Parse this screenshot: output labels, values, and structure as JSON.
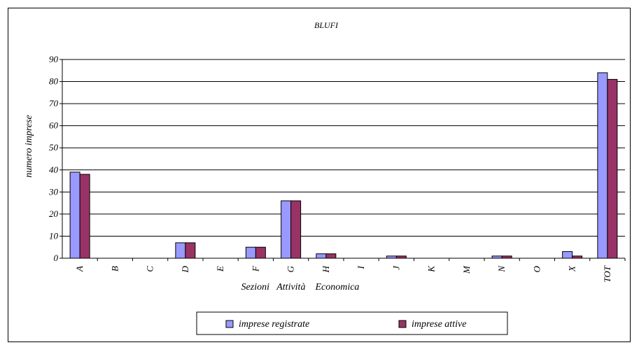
{
  "chart_data": {
    "type": "bar",
    "title": "BLUFI",
    "ylabel": "numero imprese",
    "xlabel": "Sezioni   Attività    Economica",
    "ylim": [
      0,
      90
    ],
    "yticks": [
      0,
      10,
      20,
      30,
      40,
      50,
      60,
      70,
      80,
      90
    ],
    "grid": true,
    "legend_position": "bottom",
    "categories": [
      "A",
      "B",
      "C",
      "D",
      "E",
      "F",
      "G",
      "H",
      "I",
      "J",
      "K",
      "M",
      "N",
      "O",
      "X",
      "TOT"
    ],
    "series": [
      {
        "name": "imprese registrate",
        "color": "#9999FF",
        "values": [
          39,
          0,
          0,
          7,
          0,
          5,
          26,
          2,
          0,
          1,
          0,
          0,
          1,
          0,
          3,
          84
        ]
      },
      {
        "name": "imprese attive",
        "color": "#993366",
        "values": [
          38,
          0,
          0,
          7,
          0,
          5,
          26,
          2,
          0,
          1,
          0,
          0,
          1,
          0,
          1,
          81
        ]
      }
    ]
  }
}
